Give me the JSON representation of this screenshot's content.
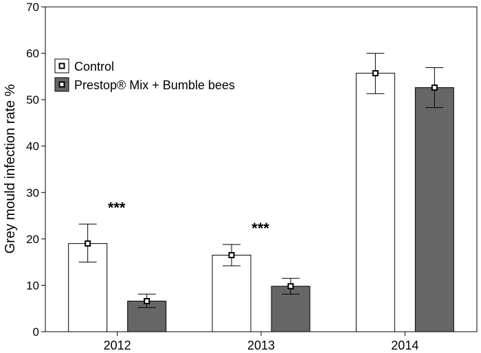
{
  "chart_data": {
    "type": "bar",
    "title": "",
    "xlabel": "",
    "ylabel": "Grey mould infection rate %",
    "ylim": [
      0,
      70
    ],
    "yticks": [
      0,
      10,
      20,
      30,
      40,
      50,
      60,
      70
    ],
    "grid": false,
    "legend_position": "top-left",
    "categories": [
      "2012",
      "2013",
      "2014"
    ],
    "series": [
      {
        "name": "Control",
        "color": "#ffffff",
        "values": [
          19.0,
          16.5,
          55.7
        ],
        "error_low": [
          15.0,
          14.2,
          51.3
        ],
        "error_high": [
          23.2,
          18.8,
          60.0
        ]
      },
      {
        "name": "Prestop® Mix + Bumble bees",
        "color": "#666666",
        "values": [
          6.6,
          9.8,
          52.6
        ],
        "error_low": [
          5.2,
          8.1,
          48.3
        ],
        "error_high": [
          8.1,
          11.5,
          56.9
        ]
      }
    ],
    "annotations": [
      {
        "category": "2012",
        "text": "***"
      },
      {
        "category": "2013",
        "text": "***"
      }
    ]
  }
}
